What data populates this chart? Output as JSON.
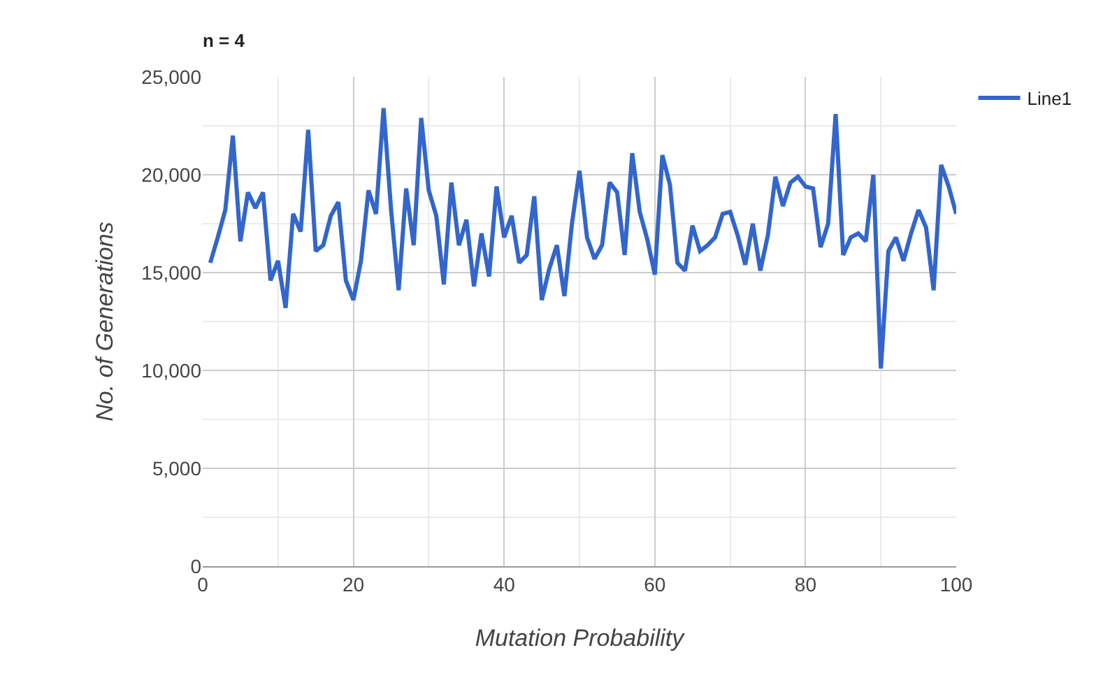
{
  "chart_data": {
    "type": "line",
    "title": "n = 4",
    "xlabel": "Mutation Probability",
    "ylabel": "No. of Generations",
    "x": [
      1,
      2,
      3,
      4,
      5,
      6,
      7,
      8,
      9,
      10,
      11,
      12,
      13,
      14,
      15,
      16,
      17,
      18,
      19,
      20,
      21,
      22,
      23,
      24,
      25,
      26,
      27,
      28,
      29,
      30,
      31,
      32,
      33,
      34,
      35,
      36,
      37,
      38,
      39,
      40,
      41,
      42,
      43,
      44,
      45,
      46,
      47,
      48,
      49,
      50,
      51,
      52,
      53,
      54,
      55,
      56,
      57,
      58,
      59,
      60,
      61,
      62,
      63,
      64,
      65,
      66,
      67,
      68,
      69,
      70,
      71,
      72,
      73,
      74,
      75,
      76,
      77,
      78,
      79,
      80,
      81,
      82,
      83,
      84,
      85,
      86,
      87,
      88,
      89,
      90,
      91,
      92,
      93,
      94,
      95,
      96,
      97,
      98,
      99,
      100
    ],
    "series": [
      {
        "name": "Line1",
        "color": "#3366cc",
        "values": [
          15500,
          16800,
          18200,
          22000,
          16600,
          19100,
          18300,
          19100,
          14600,
          15600,
          13200,
          18000,
          17100,
          22300,
          16100,
          16400,
          17900,
          18600,
          14600,
          13600,
          15600,
          19200,
          18000,
          23400,
          18200,
          14100,
          19300,
          16400,
          22900,
          19200,
          17900,
          14400,
          19600,
          16400,
          17700,
          14300,
          17000,
          14800,
          19400,
          16800,
          17900,
          15500,
          15900,
          18900,
          13600,
          15200,
          16400,
          13800,
          17500,
          20200,
          16800,
          15700,
          16400,
          19600,
          19100,
          15900,
          21100,
          18100,
          16700,
          14900,
          21000,
          19500,
          15500,
          15100,
          17400,
          16100,
          16400,
          16800,
          18000,
          18100,
          16900,
          15400,
          17500,
          15100,
          16900,
          19900,
          18400,
          19600,
          19900,
          19400,
          19300,
          16300,
          17500,
          23100,
          15900,
          16800,
          17000,
          16600,
          20000,
          10100,
          16100,
          16800,
          15600,
          17000,
          18200,
          17300,
          14100,
          20500,
          19400,
          18000
        ]
      }
    ],
    "xlim": [
      0,
      100
    ],
    "xticks": [
      0,
      20,
      40,
      60,
      80,
      100
    ],
    "ylim": [
      0,
      25000
    ],
    "yticks": [
      {
        "value": 0,
        "label": "0"
      },
      {
        "value": 5000,
        "label": "5,000"
      },
      {
        "value": 10000,
        "label": "10,000"
      },
      {
        "value": 15000,
        "label": "15,000"
      },
      {
        "value": 20000,
        "label": "20,000"
      },
      {
        "value": 25000,
        "label": "25,000"
      }
    ],
    "grid": true,
    "legend": "top right",
    "marker": "none",
    "line_style": "solid"
  }
}
